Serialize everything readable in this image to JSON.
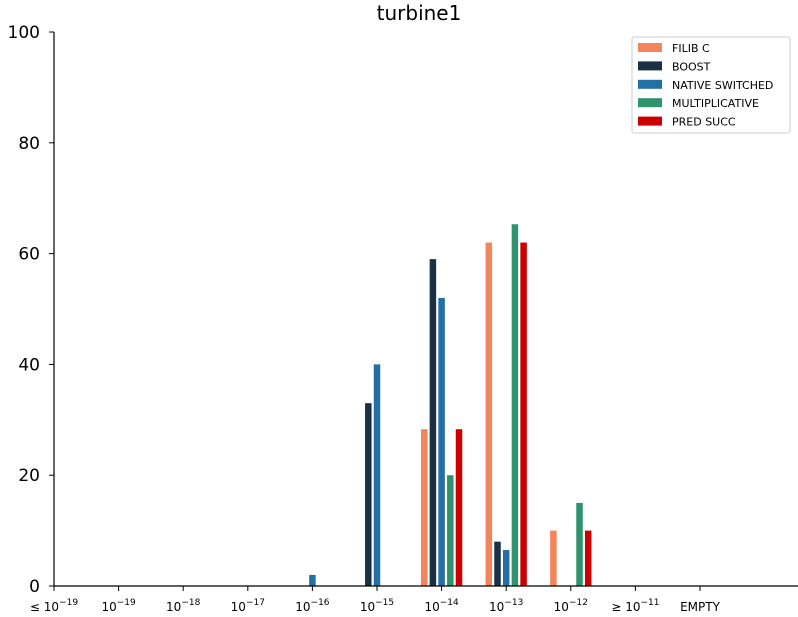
{
  "chart_data": {
    "type": "bar",
    "title": "turbine1",
    "xlabel": "",
    "ylabel": "",
    "ylim": [
      0,
      100
    ],
    "yticks": [
      "0",
      "20",
      "40",
      "60",
      "80",
      "100"
    ],
    "categories": [
      {
        "base": "≤ 10",
        "exp": "−19"
      },
      {
        "base": "10",
        "exp": "−19"
      },
      {
        "base": "10",
        "exp": "−18"
      },
      {
        "base": "10",
        "exp": "−17"
      },
      {
        "base": "10",
        "exp": "−16"
      },
      {
        "base": "10",
        "exp": "−15"
      },
      {
        "base": "10",
        "exp": "−14"
      },
      {
        "base": "10",
        "exp": "−13"
      },
      {
        "base": "10",
        "exp": "−12"
      },
      {
        "base": "≥ 10",
        "exp": "−11"
      },
      {
        "base": "EMPTY",
        "exp": ""
      }
    ],
    "legend_position": "top-right",
    "grid": false,
    "series": [
      {
        "name": "FILIB C",
        "color": "#f4845a",
        "values": [
          0,
          0,
          0,
          0,
          0,
          0,
          28.3,
          62,
          10,
          0,
          0
        ]
      },
      {
        "name": "BOOST",
        "color": "#1b2f45",
        "values": [
          0,
          0,
          0,
          0,
          0,
          33,
          59,
          8,
          0,
          0,
          0
        ]
      },
      {
        "name": "NATIVE SWITCHED",
        "color": "#2370a6",
        "values": [
          0,
          0,
          0,
          0,
          2,
          40,
          52,
          6.5,
          0,
          0,
          0
        ]
      },
      {
        "name": "MULTIPLICATIVE",
        "color": "#2f946e",
        "values": [
          0,
          0,
          0,
          0,
          0,
          0,
          20,
          65.3,
          15,
          0,
          0
        ]
      },
      {
        "name": "PRED SUCC",
        "color": "#cc0000",
        "values": [
          0,
          0,
          0,
          0,
          0,
          0,
          28.3,
          62,
          10,
          0,
          0
        ]
      }
    ]
  }
}
